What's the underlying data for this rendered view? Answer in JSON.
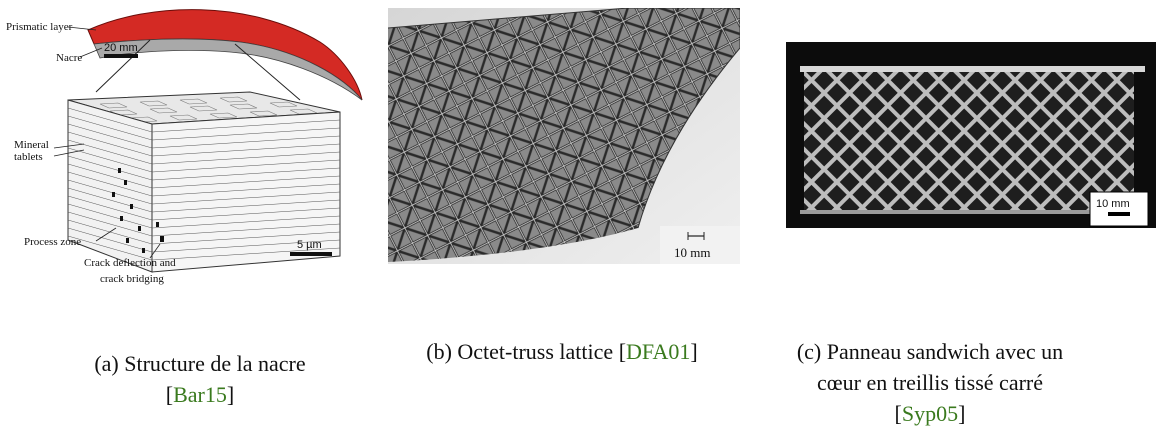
{
  "panels": [
    {
      "labels": {
        "prismatic": "Prismatic layer",
        "nacre": "Nacre",
        "scale_top": "20 mm",
        "mineral_line1": "Mineral",
        "mineral_line2": "tablets",
        "process_zone": "Process zone",
        "scale_bottom": "5 µm",
        "crack_line1": "Crack deflection and",
        "crack_line2": "crack bridging"
      },
      "caption_line1": "(a) Structure de la nacre",
      "caption_ref": "Bar15"
    },
    {
      "labels": {
        "scale": "10 mm"
      },
      "caption_text": "(b) Octet-truss lattice",
      "caption_ref": "DFA01"
    },
    {
      "labels": {
        "scale": "10 mm"
      },
      "caption_line1": "(c) Panneau sandwich avec un",
      "caption_line2": "cœur en treillis tissé carré",
      "caption_ref": "Syp05"
    }
  ]
}
